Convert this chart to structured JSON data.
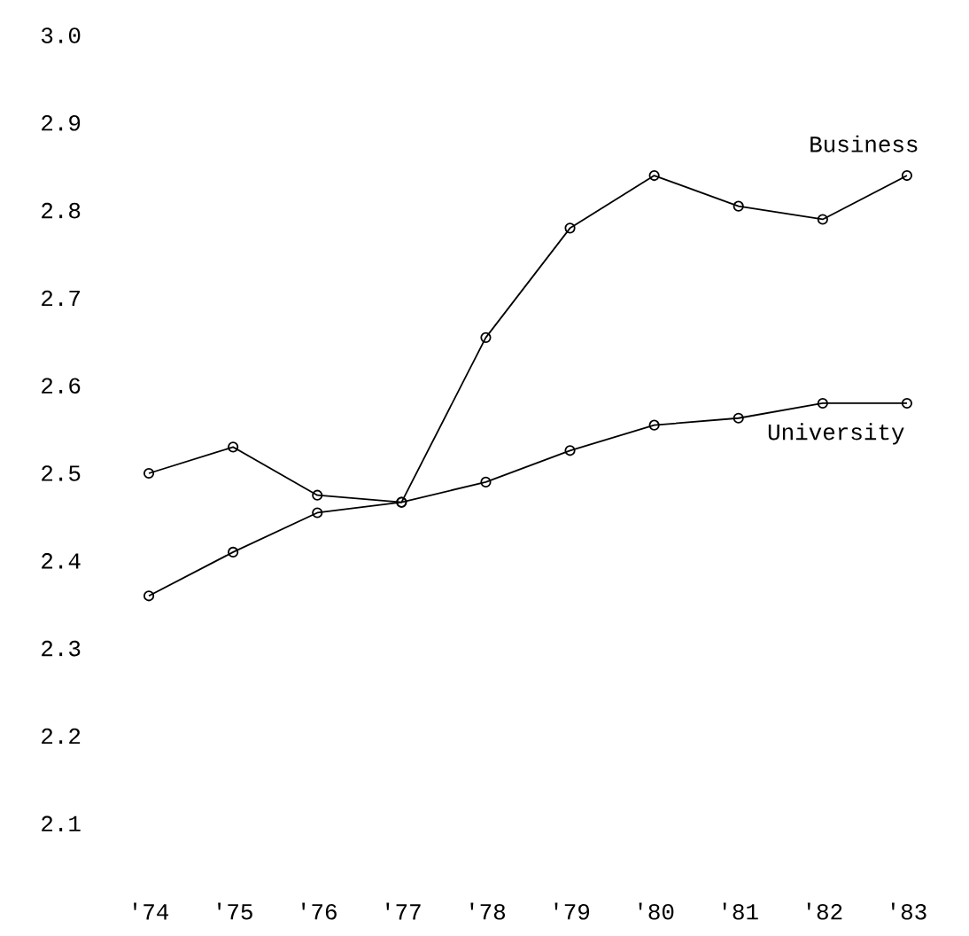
{
  "chart_data": {
    "type": "line",
    "categories": [
      "'74",
      "'75",
      "'76",
      "'77",
      "'78",
      "'79",
      "'80",
      "'81",
      "'82",
      "'83"
    ],
    "series": [
      {
        "name": "Business",
        "color": "#000000",
        "values": [
          2.36,
          2.41,
          2.455,
          2.467,
          2.655,
          2.78,
          2.84,
          2.805,
          2.79,
          2.84
        ]
      },
      {
        "name": "University",
        "color": "#000000",
        "values": [
          2.5,
          2.53,
          2.475,
          2.467,
          2.49,
          2.526,
          2.555,
          2.563,
          2.58,
          2.58
        ]
      }
    ],
    "ylim": [
      2.1,
      3.0
    ],
    "yticks": [
      2.1,
      2.2,
      2.3,
      2.4,
      2.5,
      2.6,
      2.7,
      2.8,
      2.9,
      {
        "value": 3.0,
        "label": "3.0"
      }
    ],
    "grid": false,
    "marker": "circle",
    "line_style": "solid"
  }
}
